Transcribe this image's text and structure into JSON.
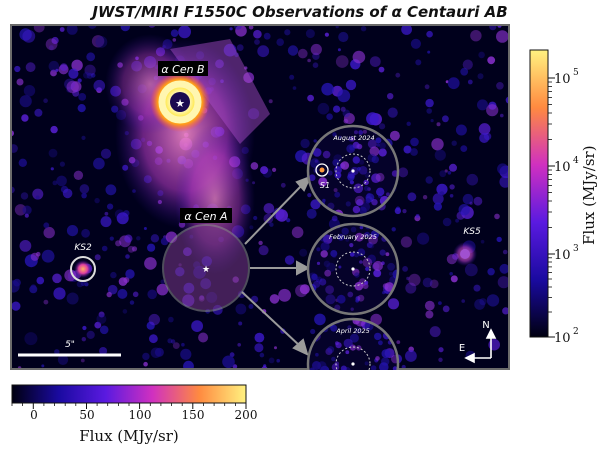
{
  "title": "JWST/MIRI F1550C Observations of α Centauri AB",
  "labels": {
    "cen_b": "α Cen B",
    "cen_a": "α Cen A",
    "ks2": "KS2",
    "ks5": "KS5",
    "s1": "S1",
    "scale_bar": "5\"",
    "compass_north": "N",
    "compass_east": "E"
  },
  "insets": [
    {
      "date": "August 2024"
    },
    {
      "date": "February 2025"
    },
    {
      "date": "April 2025"
    }
  ],
  "colorbar_vertical": {
    "label": "Flux (MJy/sr)",
    "scale": "log",
    "ticks": [
      "10",
      "10",
      "10",
      "10"
    ],
    "exponents": [
      "5",
      "4",
      "3",
      "2"
    ],
    "range": [
      100,
      200000
    ]
  },
  "colorbar_horizontal": {
    "label": "Flux (MJy/sr)",
    "scale": "linear",
    "ticks": [
      "0",
      "50",
      "100",
      "150",
      "200"
    ],
    "range": [
      -20,
      200
    ]
  },
  "colors": {
    "frame": "#6b6b6b",
    "background": "#000022",
    "label_box": "#000000",
    "label_text": "#ffffff",
    "arrow": "#9a9a9a"
  }
}
